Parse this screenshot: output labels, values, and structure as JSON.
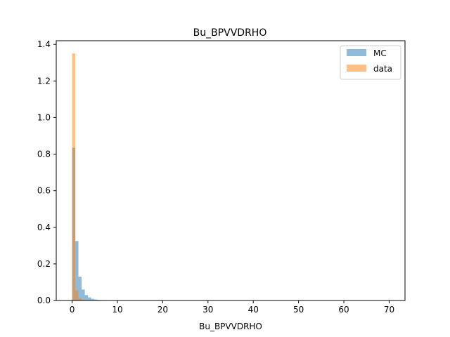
{
  "chart_data": {
    "type": "bar",
    "title": "Bu_BPVVDRHO",
    "xlabel": "Bu_BPVVDRHO",
    "ylabel": "",
    "xlim": [
      -3.5,
      73.5
    ],
    "ylim": [
      0,
      1.42
    ],
    "xticks": [
      0,
      10,
      20,
      30,
      40,
      50,
      60,
      70
    ],
    "yticks": [
      0.0,
      0.2,
      0.4,
      0.6,
      0.8,
      1.0,
      1.2,
      1.4
    ],
    "xtick_labels": [
      "0",
      "10",
      "20",
      "30",
      "40",
      "50",
      "60",
      "70"
    ],
    "ytick_labels": [
      "0.0",
      "0.2",
      "0.4",
      "0.6",
      "0.8",
      "1.0",
      "1.2",
      "1.4"
    ],
    "grid": false,
    "legend_position": "top-right",
    "series": [
      {
        "name": "MC",
        "color": "#1f77b4",
        "bin_width": 0.7,
        "bin_start": 0.0,
        "values": [
          0.835,
          0.325,
          0.13,
          0.06,
          0.03,
          0.017,
          0.009,
          0.005,
          0.003,
          0.002,
          0.001,
          0.001,
          0.0005,
          0.0005,
          0.0003,
          0.0002
        ]
      },
      {
        "name": "data",
        "color": "#ff7f0e",
        "bin_width": 0.7,
        "bin_start": 0.0,
        "values": [
          1.35,
          0.055,
          0.012,
          0.005,
          0.002
        ]
      }
    ]
  }
}
